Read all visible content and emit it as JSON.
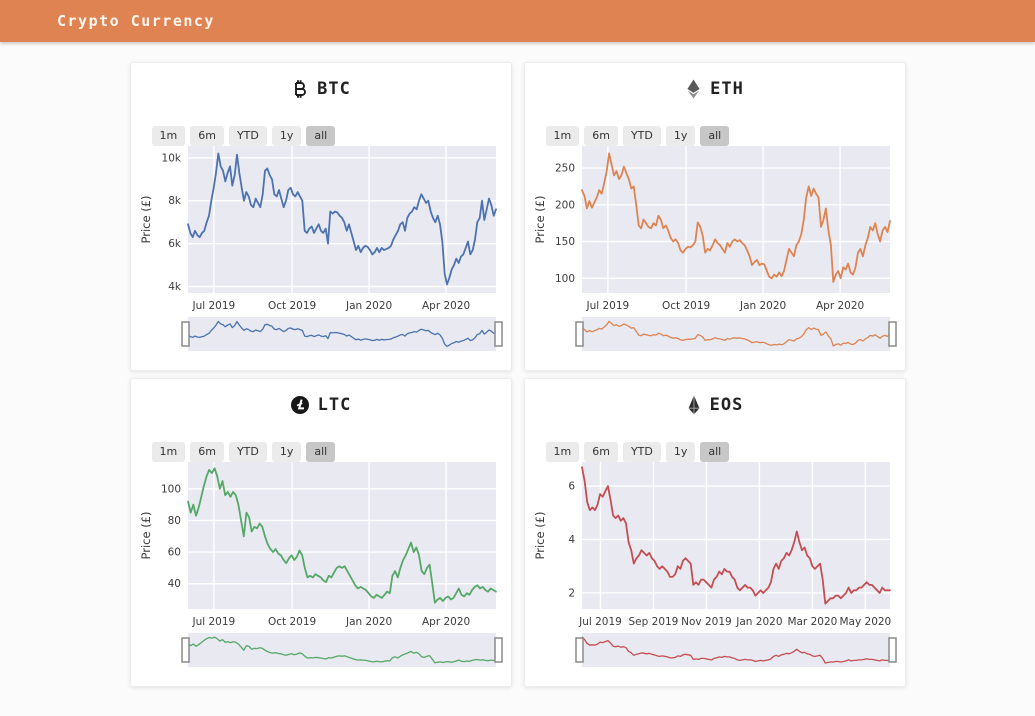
{
  "header": {
    "title": "Crypto Currency"
  },
  "theme": {
    "header_bg": "#de8351",
    "page_bg": "#fbfbfb",
    "card_bg": "#ffffff",
    "plot_bg": "#e9e9f2",
    "grid_color": "#ffffff",
    "tick_color": "#3c3c3c",
    "button_bg": "#ebebeb",
    "button_active_bg": "#c7c7c7",
    "slider_handle_border": "#8a8a8a"
  },
  "range_buttons": {
    "labels": [
      "1m",
      "6m",
      "YTD",
      "1y",
      "all"
    ],
    "active": "all"
  },
  "chart_data": [
    {
      "type": "line",
      "title": "BTC",
      "icon": "bitcoin",
      "color": "#4c72b0",
      "ylabel": "Price (£)",
      "ylim": [
        3.7,
        10.55
      ],
      "ytick_values": [
        4,
        6,
        8,
        10
      ],
      "ytick_labels": [
        "4k",
        "6k",
        "8k",
        "10k"
      ],
      "xtick_pos": [
        0.084,
        0.338,
        0.588,
        0.838
      ],
      "xtick_labels": [
        "Jul 2019",
        "Oct 2019",
        "Jan 2020",
        "Apr 2020"
      ],
      "x_span": "Jun 2019 – Jun 2020",
      "values": [
        6.9,
        6.5,
        6.3,
        6.6,
        6.4,
        6.3,
        6.5,
        6.6,
        7.0,
        7.3,
        8.0,
        8.6,
        9.3,
        10.2,
        9.6,
        9.4,
        8.9,
        9.3,
        9.6,
        8.7,
        9.2,
        10.15,
        9.3,
        8.6,
        8.0,
        8.4,
        8.2,
        7.8,
        7.7,
        8.1,
        7.9,
        7.7,
        8.3,
        9.4,
        9.5,
        9.2,
        9.0,
        8.3,
        8.2,
        8.5,
        8.1,
        7.7,
        8.0,
        8.5,
        8.6,
        8.3,
        8.2,
        8.4,
        8.2,
        8.0,
        6.6,
        6.5,
        6.7,
        6.8,
        6.5,
        6.7,
        6.9,
        6.6,
        6.5,
        6.7,
        6.0,
        7.5,
        7.4,
        7.5,
        7.45,
        7.3,
        7.2,
        7.0,
        6.6,
        6.9,
        6.5,
        6.1,
        5.7,
        5.9,
        5.6,
        5.8,
        5.9,
        5.85,
        5.7,
        5.5,
        5.6,
        5.8,
        5.6,
        5.8,
        5.7,
        5.75,
        5.8,
        5.9,
        6.2,
        6.4,
        6.6,
        6.9,
        7.0,
        6.6,
        7.2,
        7.4,
        7.5,
        7.7,
        7.6,
        8.0,
        8.3,
        8.1,
        7.9,
        8.0,
        7.5,
        7.2,
        7.0,
        7.3,
        6.9,
        6.1,
        4.6,
        4.1,
        4.4,
        4.8,
        5.0,
        5.3,
        5.1,
        5.4,
        5.5,
        5.8,
        6.1,
        5.5,
        5.7,
        6.2,
        7.0,
        7.2,
        8.0,
        7.1,
        7.6,
        8.1,
        7.8,
        7.3,
        7.6
      ]
    },
    {
      "type": "line",
      "title": "ETH",
      "icon": "ethereum",
      "color": "#dd8452",
      "ylabel": "Price (£)",
      "ylim": [
        80,
        280
      ],
      "ytick_values": [
        100,
        150,
        200,
        250
      ],
      "ytick_labels": [
        "100",
        "150",
        "200",
        "250"
      ],
      "xtick_pos": [
        0.084,
        0.338,
        0.588,
        0.838
      ],
      "xtick_labels": [
        "Jul 2019",
        "Oct 2019",
        "Jan 2020",
        "Apr 2020"
      ],
      "x_span": "Jun 2019 – Jun 2020",
      "values": [
        220,
        212,
        195,
        205,
        196,
        203,
        210,
        220,
        215,
        230,
        245,
        270,
        255,
        240,
        246,
        235,
        240,
        252,
        243,
        235,
        222,
        225,
        200,
        172,
        168,
        180,
        175,
        170,
        168,
        175,
        172,
        185,
        180,
        168,
        172,
        165,
        155,
        150,
        153,
        148,
        138,
        135,
        140,
        143,
        142,
        145,
        150,
        176,
        170,
        158,
        135,
        140,
        138,
        145,
        153,
        148,
        145,
        140,
        135,
        148,
        143,
        150,
        153,
        150,
        152,
        148,
        145,
        138,
        130,
        118,
        122,
        125,
        118,
        120,
        119,
        110,
        102,
        100,
        105,
        102,
        108,
        103,
        110,
        125,
        140,
        135,
        130,
        145,
        150,
        160,
        180,
        210,
        225,
        212,
        222,
        215,
        210,
        170,
        180,
        195,
        165,
        145,
        95,
        105,
        110,
        100,
        115,
        112,
        120,
        108,
        105,
        115,
        135,
        140,
        130,
        145,
        155,
        170,
        165,
        175,
        160,
        150,
        165,
        170,
        163,
        178
      ]
    },
    {
      "type": "line",
      "title": "LTC",
      "icon": "litecoin",
      "color": "#55a868",
      "ylabel": "Price (£)",
      "ylim": [
        24,
        117
      ],
      "ytick_values": [
        40,
        60,
        80,
        100
      ],
      "ytick_labels": [
        "40",
        "60",
        "80",
        "100"
      ],
      "xtick_pos": [
        0.084,
        0.338,
        0.588,
        0.838
      ],
      "xtick_labels": [
        "Jul 2019",
        "Oct 2019",
        "Jan 2020",
        "Apr 2020"
      ],
      "x_span": "Jun 2019 – Jun 2020",
      "values": [
        92,
        85,
        90,
        83,
        88,
        95,
        102,
        108,
        112,
        110,
        113,
        108,
        100,
        105,
        96,
        98,
        95,
        98,
        96,
        90,
        80,
        70,
        85,
        82,
        73,
        76,
        75,
        78,
        76,
        70,
        65,
        62,
        60,
        62,
        59,
        58,
        55,
        53,
        56,
        58,
        55,
        57,
        61,
        58,
        50,
        44,
        45,
        44,
        46,
        45,
        44,
        42,
        41,
        45,
        44,
        47,
        50,
        51,
        50,
        51,
        48,
        45,
        42,
        39,
        37,
        38,
        37,
        36,
        34,
        32,
        31,
        33,
        32,
        31,
        33,
        35,
        34,
        45,
        48,
        44,
        50,
        55,
        58,
        62,
        66,
        60,
        63,
        58,
        48,
        46,
        50,
        52,
        40,
        28,
        30,
        31,
        29,
        31,
        32,
        30,
        31,
        34,
        37,
        33,
        32,
        34,
        33,
        36,
        38,
        39,
        37,
        38,
        36,
        35,
        37,
        36,
        35
      ]
    },
    {
      "type": "line",
      "title": "EOS",
      "icon": "eos",
      "color": "#c44e52",
      "ylabel": "Price (£)",
      "ylim": [
        1.4,
        6.9
      ],
      "ytick_values": [
        2,
        4,
        6
      ],
      "ytick_labels": [
        "2",
        "4",
        "6"
      ],
      "xtick_pos": [
        0.06,
        0.232,
        0.404,
        0.576,
        0.748,
        0.92
      ],
      "xtick_labels": [
        "Jul 2019",
        "Sep 2019",
        "Nov 2019",
        "Jan 2020",
        "Mar 2020",
        "May 2020"
      ],
      "x_span": "Jun 2019 – Jun 2020",
      "values": [
        6.7,
        6.2,
        5.4,
        5.1,
        5.2,
        5.1,
        5.3,
        5.7,
        5.6,
        5.8,
        6.0,
        5.5,
        4.9,
        4.8,
        4.9,
        4.7,
        4.8,
        4.6,
        3.9,
        3.6,
        3.1,
        3.3,
        3.4,
        3.6,
        3.5,
        3.4,
        3.5,
        3.3,
        3.2,
        3.0,
        2.9,
        3.0,
        2.9,
        2.8,
        2.6,
        2.6,
        2.7,
        3.0,
        2.9,
        3.2,
        3.3,
        3.2,
        3.1,
        2.3,
        2.4,
        2.3,
        2.5,
        2.5,
        2.4,
        2.3,
        2.2,
        2.5,
        2.6,
        2.8,
        2.7,
        2.9,
        2.8,
        2.8,
        2.6,
        2.5,
        2.2,
        2.1,
        2.2,
        2.3,
        2.2,
        2.2,
        2.1,
        1.9,
        2.0,
        2.1,
        2.0,
        2.1,
        2.2,
        2.4,
        2.9,
        3.1,
        2.9,
        3.2,
        3.3,
        3.5,
        3.4,
        3.6,
        3.9,
        4.3,
        3.9,
        3.6,
        3.7,
        3.4,
        3.3,
        3.0,
        2.9,
        3.0,
        3.1,
        2.5,
        1.6,
        1.7,
        1.8,
        1.8,
        1.9,
        1.9,
        1.8,
        1.9,
        2.0,
        2.2,
        2.0,
        2.1,
        2.1,
        2.2,
        2.2,
        2.3,
        2.4,
        2.3,
        2.3,
        2.2,
        2.1,
        2.0,
        2.2,
        2.1,
        2.1,
        2.1
      ]
    }
  ]
}
